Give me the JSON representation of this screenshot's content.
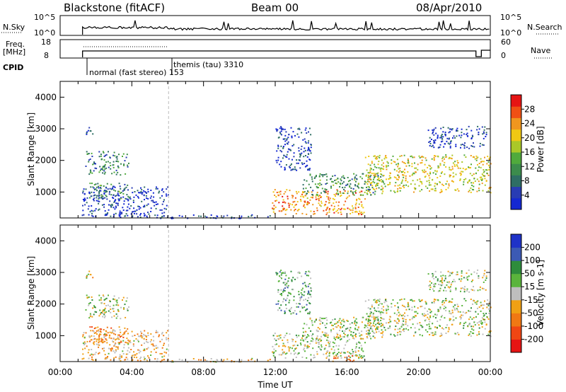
{
  "header": {
    "station": "Blackstone (fitACF)",
    "beam": "Beam 00",
    "date": "08/Apr/2010"
  },
  "summary_panels": {
    "nsky_label": "N.Sky",
    "nsky_ticks": [
      "10^5",
      "10^0"
    ],
    "nsearch_label": "N.Search",
    "nsearch_ticks": [
      "10^5",
      "10^0"
    ],
    "freq_label_1": "Freq.",
    "freq_label_2": "[MHz]",
    "freq_ticks": [
      "18",
      "8"
    ],
    "nave_label": "Nave",
    "nave_ticks": [
      "60",
      "0"
    ],
    "cpid_label": "CPID",
    "cpid_modes": [
      {
        "name": "normal (fast stereo) 153",
        "start_hour": 1.25
      },
      {
        "name": "themis (tau) 3310",
        "start_hour": 6.05
      }
    ]
  },
  "colors": {
    "power_scale": [
      "#1428d2",
      "#283cb4",
      "#2e6e64",
      "#3c8c4c",
      "#50aa3c",
      "#aac828",
      "#f0c814",
      "#f0961e",
      "#f05014",
      "#e61414"
    ],
    "velocity_scale": [
      "#1e32c8",
      "#3c5ab4",
      "#2e8c3c",
      "#5ab43c",
      "#bebebe",
      "#f0a014",
      "#f07814",
      "#f04614",
      "#e61414"
    ]
  },
  "chart_data": [
    {
      "type": "heatmap",
      "name": "Power",
      "xlabel": "Time UT",
      "ylabel": "Slant Range [km]",
      "x_ticks": [
        "00:00",
        "04:00",
        "08:00",
        "12:00",
        "16:00",
        "20:00",
        "00:00"
      ],
      "xlim_hours": [
        0,
        24
      ],
      "ylim": [
        180,
        4500
      ],
      "y_ticks": [
        1000,
        2000,
        3000,
        4000
      ],
      "colorbar_label": "Power [dB]",
      "colorbar_ticks": [
        4,
        8,
        12,
        16,
        20,
        24,
        28
      ],
      "colorbar_range": [
        0,
        32
      ],
      "regions": [
        {
          "t0": 1.3,
          "t1": 1.8,
          "r0": 2800,
          "r1": 3100,
          "level": 0.15
        },
        {
          "t0": 1.4,
          "t1": 3.8,
          "r0": 1550,
          "r1": 2300,
          "level": 0.3
        },
        {
          "t0": 1.6,
          "t1": 3.9,
          "r0": 800,
          "r1": 1300,
          "level": 0.35
        },
        {
          "t0": 1.2,
          "t1": 6.0,
          "r0": 200,
          "r1": 1200,
          "level": 0.1
        },
        {
          "t0": 5.5,
          "t1": 12.0,
          "r0": 180,
          "r1": 300,
          "level": 0.12
        },
        {
          "t0": 11.8,
          "t1": 17.0,
          "r0": 300,
          "r1": 1100,
          "level": 0.75
        },
        {
          "t0": 13.5,
          "t1": 18.0,
          "r0": 900,
          "r1": 1600,
          "level": 0.35
        },
        {
          "t0": 17.0,
          "t1": 24.0,
          "r0": 1000,
          "r1": 2200,
          "level": 0.6
        },
        {
          "t0": 12.0,
          "t1": 14.0,
          "r0": 1700,
          "r1": 3100,
          "level": 0.12
        },
        {
          "t0": 20.5,
          "t1": 23.8,
          "r0": 2400,
          "r1": 3100,
          "level": 0.12
        }
      ]
    },
    {
      "type": "heatmap",
      "name": "Velocity",
      "xlabel": "Time UT",
      "ylabel": "Slant Range [km]",
      "x_ticks": [
        "00:00",
        "04:00",
        "08:00",
        "12:00",
        "16:00",
        "20:00",
        "00:00"
      ],
      "xlim_hours": [
        0,
        24
      ],
      "ylim": [
        180,
        4500
      ],
      "y_ticks": [
        1000,
        2000,
        3000,
        4000
      ],
      "colorbar_label": "Velocity [m s-1]",
      "colorbar_ticks": [
        "200",
        "100",
        "50",
        "15",
        "-15",
        "-50",
        "-100",
        "-200"
      ],
      "regions": [
        {
          "t0": 1.3,
          "t1": 1.8,
          "r0": 2800,
          "r1": 3100,
          "level": 0.55
        },
        {
          "t0": 1.4,
          "t1": 3.8,
          "r0": 1550,
          "r1": 2300,
          "level": 0.45
        },
        {
          "t0": 1.6,
          "t1": 3.9,
          "r0": 800,
          "r1": 1300,
          "level": 0.72
        },
        {
          "t0": 1.2,
          "t1": 6.0,
          "r0": 200,
          "r1": 1200,
          "level": 0.6
        },
        {
          "t0": 5.5,
          "t1": 12.0,
          "r0": 180,
          "r1": 300,
          "level": 0.6
        },
        {
          "t0": 11.8,
          "t1": 17.0,
          "r0": 300,
          "r1": 1100,
          "level": 0.47
        },
        {
          "t0": 15.0,
          "t1": 16.5,
          "r0": 200,
          "r1": 400,
          "level": 0.72
        },
        {
          "t0": 13.5,
          "t1": 18.0,
          "r0": 900,
          "r1": 1600,
          "level": 0.47
        },
        {
          "t0": 17.0,
          "t1": 24.0,
          "r0": 1000,
          "r1": 2200,
          "level": 0.47
        },
        {
          "t0": 12.0,
          "t1": 14.0,
          "r0": 1700,
          "r1": 3100,
          "level": 0.35
        },
        {
          "t0": 20.5,
          "t1": 23.8,
          "r0": 2400,
          "r1": 3100,
          "level": 0.47
        }
      ]
    }
  ]
}
